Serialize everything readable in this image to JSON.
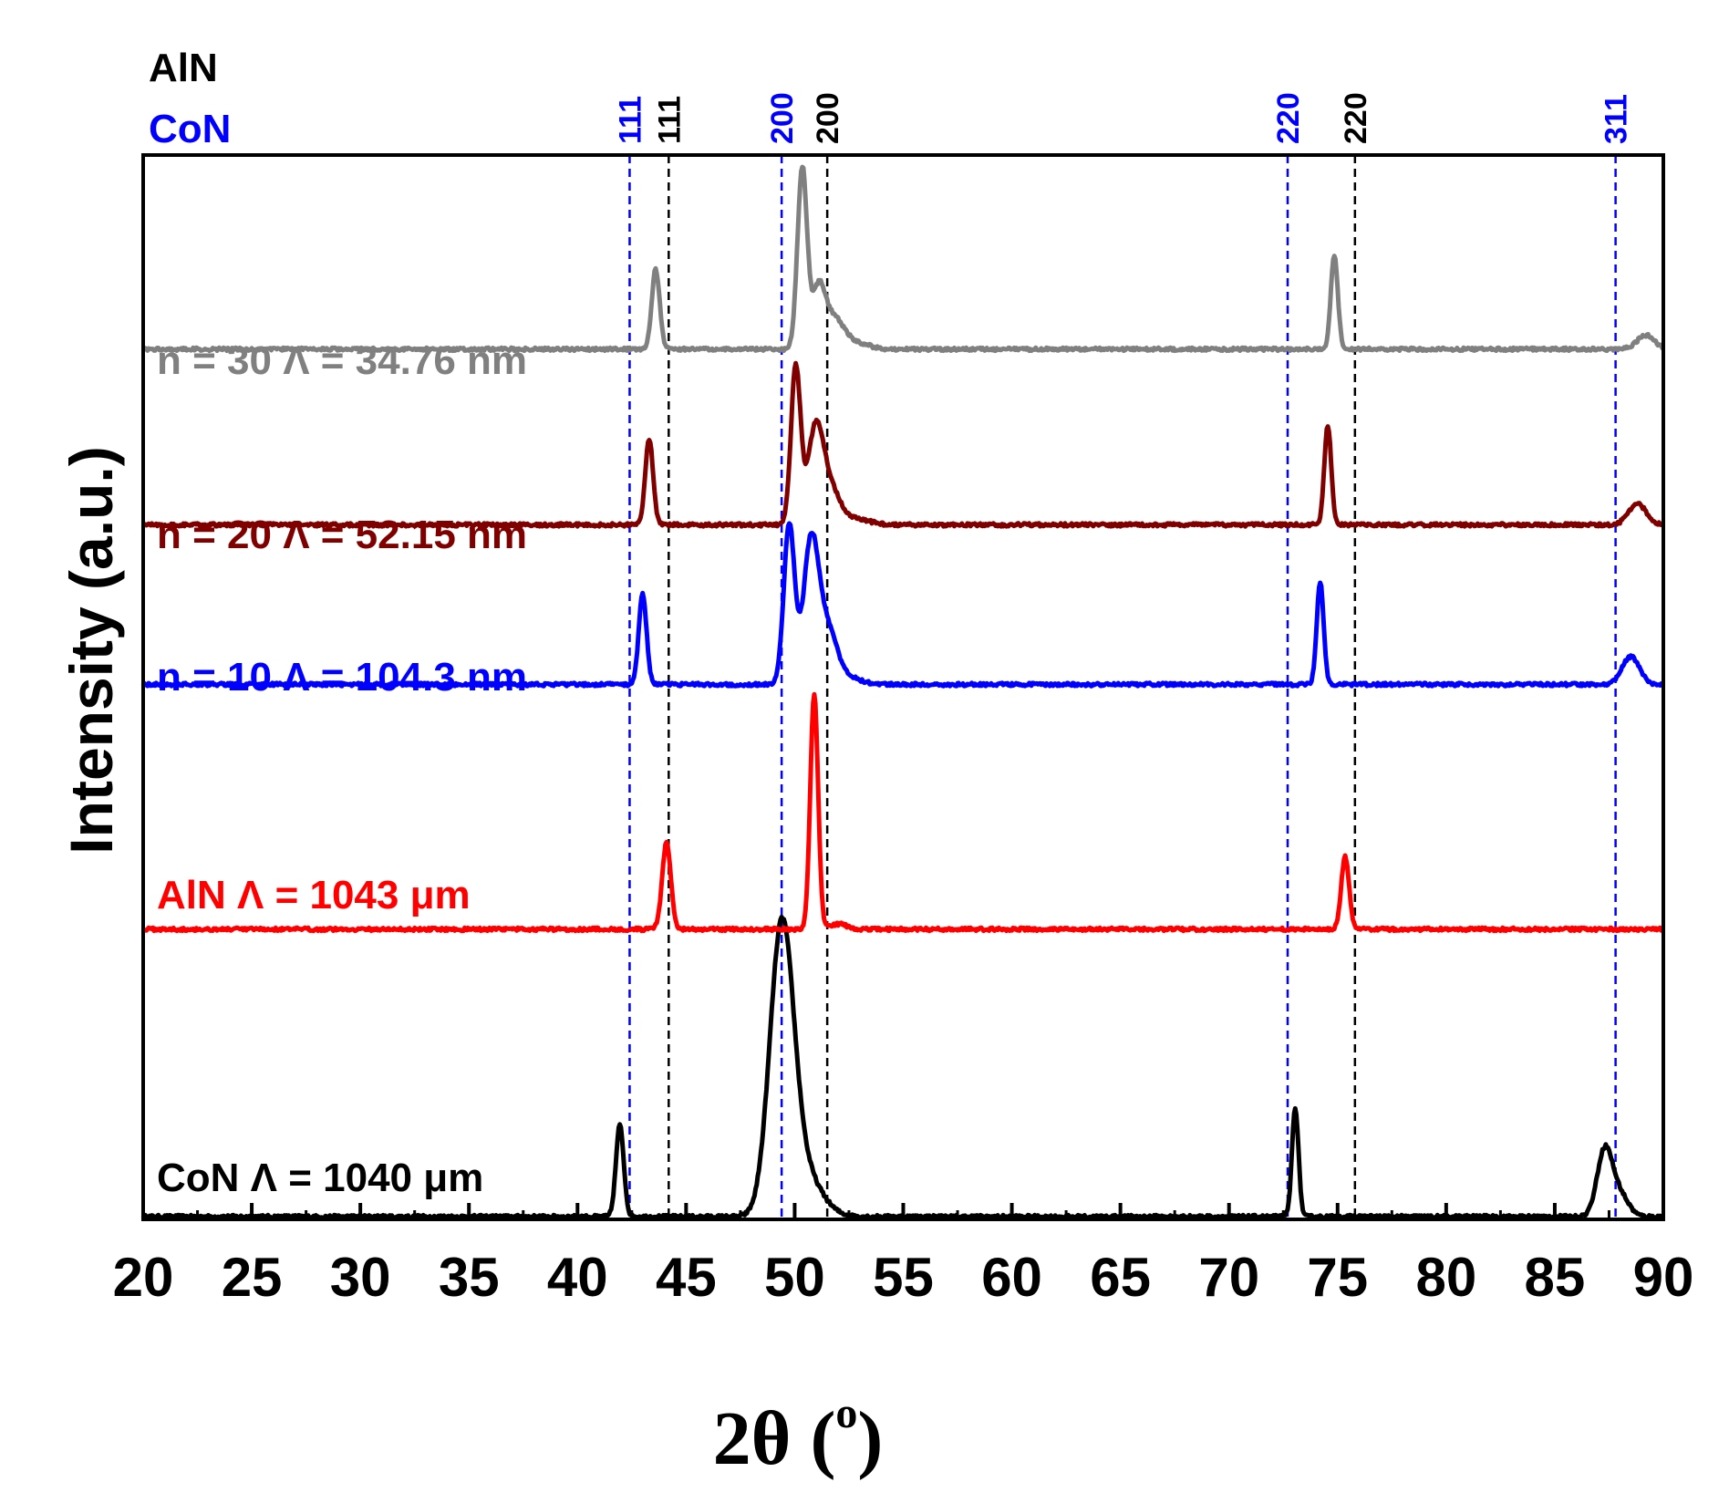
{
  "chart_data": {
    "type": "line",
    "title": "",
    "xlabel": "2θ (°)",
    "xlabel_parts": {
      "main": "2θ (",
      "sup": "o",
      "close": ")"
    },
    "ylabel": "Intensity  (a.u.)",
    "xlim": [
      20,
      90
    ],
    "xticks": [
      20,
      25,
      30,
      35,
      40,
      45,
      50,
      55,
      60,
      65,
      70,
      75,
      80,
      85,
      90
    ],
    "yticks_shown": false,
    "reference_groups": [
      {
        "name": "AlN",
        "color": "#000000"
      },
      {
        "name": "CoN",
        "color": "#0000ff"
      }
    ],
    "reference_lines": [
      {
        "group": "CoN",
        "x": 42.4,
        "label": "111",
        "color": "#0000ff"
      },
      {
        "group": "AlN",
        "x": 44.2,
        "label": "111",
        "color": "#000000"
      },
      {
        "group": "CoN",
        "x": 49.4,
        "label": "200",
        "color": "#0000ff"
      },
      {
        "group": "AlN",
        "x": 51.5,
        "label": "200",
        "color": "#000000"
      },
      {
        "group": "CoN",
        "x": 72.7,
        "label": "220",
        "color": "#0000ff"
      },
      {
        "group": "AlN",
        "x": 75.8,
        "label": "220",
        "color": "#000000"
      },
      {
        "group": "CoN",
        "x": 87.8,
        "label": "311",
        "color": "#0000ff"
      }
    ],
    "series": [
      {
        "name": "CoN Λ = 1040 μm",
        "color": "#000000",
        "offset": 0.0,
        "peaks": [
          {
            "x": 41.95,
            "height": 0.086,
            "width": 0.18
          },
          {
            "x": 49.4,
            "height": 0.262,
            "width": 0.55
          },
          {
            "x": 50.4,
            "height": 0.04,
            "width": 0.8
          },
          {
            "x": 73.05,
            "height": 0.103,
            "width": 0.15
          },
          {
            "x": 87.3,
            "height": 0.062,
            "width": 0.35
          },
          {
            "x": 88.0,
            "height": 0.02,
            "width": 0.4
          }
        ]
      },
      {
        "name": "AlN  Λ = 1043 μm",
        "color": "#ff0000",
        "offset": 0.27,
        "peaks": [
          {
            "x": 44.1,
            "height": 0.081,
            "width": 0.2
          },
          {
            "x": 50.9,
            "height": 0.22,
            "width": 0.18
          },
          {
            "x": 52.0,
            "height": 0.005,
            "width": 0.4
          },
          {
            "x": 75.35,
            "height": 0.068,
            "width": 0.18
          }
        ]
      },
      {
        "name": "n = 10 Λ = 104.3 nm",
        "color": "#0000ff",
        "offset": 0.5,
        "peaks": [
          {
            "x": 43.0,
            "height": 0.085,
            "width": 0.18
          },
          {
            "x": 49.75,
            "height": 0.15,
            "width": 0.25
          },
          {
            "x": 50.75,
            "height": 0.13,
            "width": 0.35
          },
          {
            "x": 51.5,
            "height": 0.05,
            "width": 0.45
          },
          {
            "x": 52.5,
            "height": 0.006,
            "width": 0.6
          },
          {
            "x": 74.2,
            "height": 0.096,
            "width": 0.16
          },
          {
            "x": 88.5,
            "height": 0.026,
            "width": 0.4
          }
        ]
      },
      {
        "name": "n = 20 Λ = 52.15 nm",
        "color": "#800000",
        "offset": 0.65,
        "peaks": [
          {
            "x": 43.3,
            "height": 0.081,
            "width": 0.18
          },
          {
            "x": 50.05,
            "height": 0.148,
            "width": 0.22
          },
          {
            "x": 50.95,
            "height": 0.085,
            "width": 0.35
          },
          {
            "x": 51.6,
            "height": 0.035,
            "width": 0.45
          },
          {
            "x": 52.8,
            "height": 0.006,
            "width": 0.6
          },
          {
            "x": 74.55,
            "height": 0.093,
            "width": 0.16
          },
          {
            "x": 88.8,
            "height": 0.02,
            "width": 0.4
          }
        ]
      },
      {
        "name": "n = 30 Λ = 34.76 nm",
        "color": "#808080",
        "offset": 0.815,
        "peaks": [
          {
            "x": 43.6,
            "height": 0.075,
            "width": 0.18
          },
          {
            "x": 50.35,
            "height": 0.17,
            "width": 0.22
          },
          {
            "x": 51.1,
            "height": 0.055,
            "width": 0.3
          },
          {
            "x": 51.8,
            "height": 0.028,
            "width": 0.45
          },
          {
            "x": 52.8,
            "height": 0.006,
            "width": 0.6
          },
          {
            "x": 74.85,
            "height": 0.089,
            "width": 0.16
          },
          {
            "x": 89.2,
            "height": 0.013,
            "width": 0.4
          }
        ]
      }
    ]
  }
}
